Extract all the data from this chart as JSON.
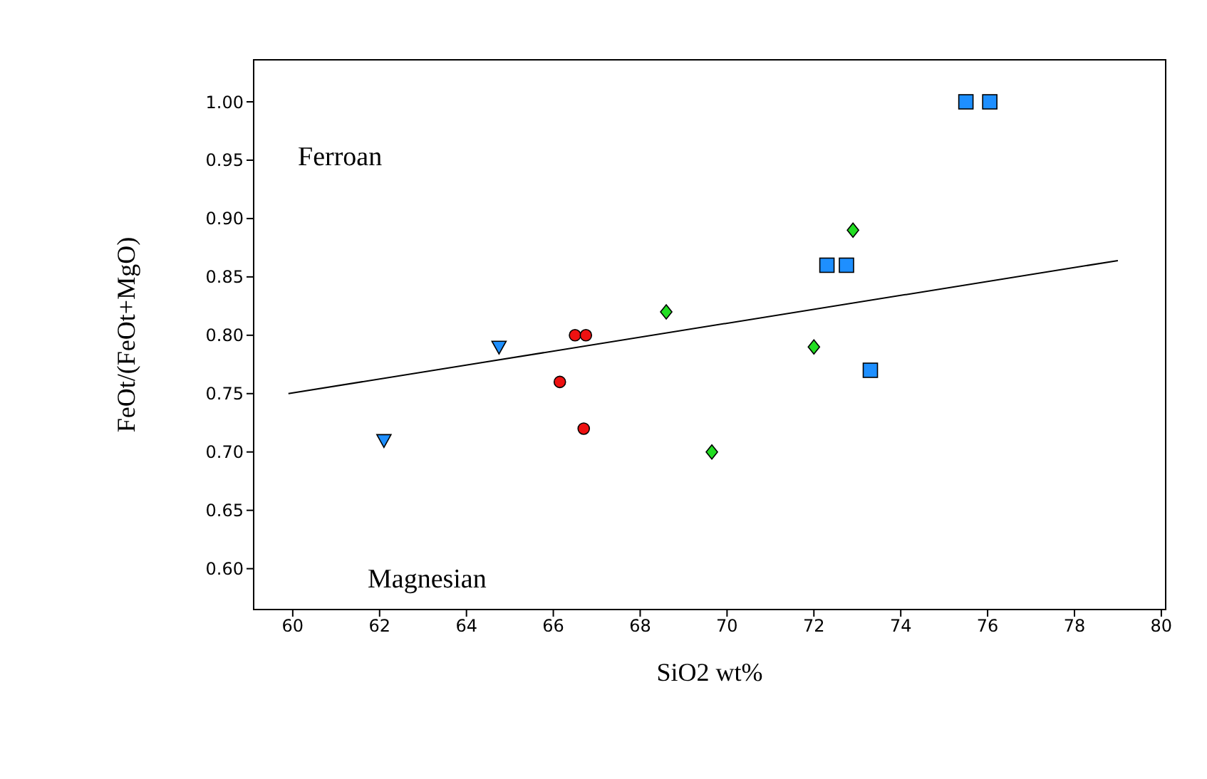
{
  "chart_data": {
    "type": "scatter",
    "xlabel": "SiO2 wt%",
    "ylabel": "FeOt/(FeOt+MgO)",
    "xlim": [
      59.1,
      80.1
    ],
    "ylim": [
      0.565,
      1.036
    ],
    "xticks": [
      60,
      62,
      64,
      66,
      68,
      70,
      72,
      74,
      76,
      78,
      80
    ],
    "yticks": [
      {
        "value": 0.6,
        "label": "0.60"
      },
      {
        "value": 0.65,
        "label": "0.65"
      },
      {
        "value": 0.7,
        "label": "0.70"
      },
      {
        "value": 0.75,
        "label": "0.75"
      },
      {
        "value": 0.8,
        "label": "0.80"
      },
      {
        "value": 0.85,
        "label": "0.85"
      },
      {
        "value": 0.9,
        "label": "0.90"
      },
      {
        "value": 0.95,
        "label": "0.95"
      },
      {
        "value": 1.0,
        "label": "1.00"
      }
    ],
    "grid": false,
    "legend": false,
    "annotations": [
      "Ferroan",
      "Magnesian"
    ],
    "series": [
      {
        "marker": "square",
        "color": "#1e8fff",
        "x": [
          75.5,
          76.05,
          72.3,
          72.75,
          73.3
        ],
        "values": [
          1.0,
          1.0,
          0.86,
          0.86,
          0.77
        ]
      },
      {
        "marker": "diamond",
        "color": "#22dd22",
        "x": [
          72.9,
          68.6,
          72.0,
          69.65
        ],
        "values": [
          0.89,
          0.82,
          0.79,
          0.7
        ]
      },
      {
        "marker": "circle",
        "color": "#ee1111",
        "x": [
          66.5,
          66.75,
          66.15,
          66.7
        ],
        "values": [
          0.8,
          0.8,
          0.76,
          0.72
        ]
      },
      {
        "marker": "triangle-down",
        "color": "#1e8fff",
        "x": [
          64.75,
          62.1
        ],
        "values": [
          0.79,
          0.71
        ]
      },
      {
        "type": "line",
        "marker": "none",
        "line_style": "solid",
        "color": "#000000",
        "x": [
          59.9,
          79.0
        ],
        "values": [
          0.75,
          0.864
        ]
      }
    ]
  }
}
